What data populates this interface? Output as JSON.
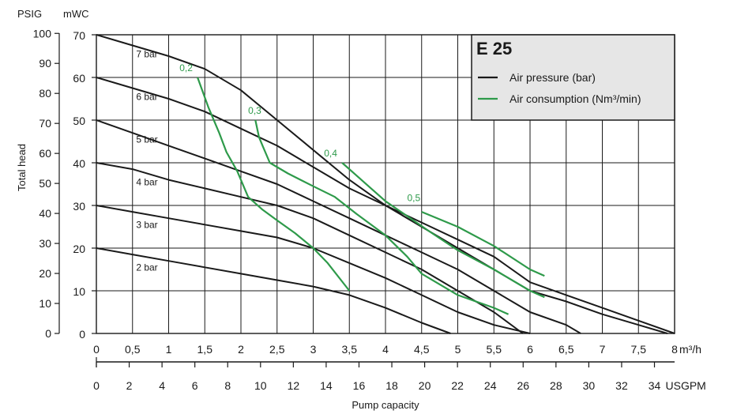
{
  "header": {
    "psig_label": "PSIG",
    "mwc_label": "mWC"
  },
  "colors": {
    "pressure": "#1a1a1a",
    "consumption": "#2e9a4a",
    "legend_bg": "#e6e6e6",
    "grid": "#1a1a1a"
  },
  "chart_data": {
    "type": "line",
    "title": "E 25",
    "ylabel": "Total head",
    "xlabel": "Pump capacity",
    "x_unit": "m³/h",
    "x2_unit": "USGPM",
    "xlim": [
      0,
      8
    ],
    "ylim": [
      0,
      70
    ],
    "grid": true,
    "legend_placement": "top-right",
    "x_ticks": [
      "0",
      "0,5",
      "1",
      "1,5",
      "2",
      "2,5",
      "3",
      "3,5",
      "4",
      "4,5",
      "5",
      "5,5",
      "6",
      "6,5",
      "7",
      "7,5",
      "8"
    ],
    "y_ticks_mwc": [
      "0",
      "10",
      "20",
      "30",
      "40",
      "50",
      "60",
      "70"
    ],
    "y_ticks_psig": [
      "0",
      "10",
      "20",
      "30",
      "40",
      "50",
      "60",
      "70",
      "80",
      "90",
      "100"
    ],
    "x2_ticks": [
      "0",
      "2",
      "4",
      "6",
      "8",
      "10",
      "12",
      "14",
      "16",
      "18",
      "20",
      "22",
      "24",
      "26",
      "28",
      "30",
      "32",
      "34"
    ],
    "legend": [
      {
        "label": "Air pressure (bar)",
        "color": "#1a1a1a"
      },
      {
        "label": "Air consumption (Nm³/min)",
        "color": "#2e9a4a"
      }
    ],
    "pressure_series": [
      {
        "name": "7 bar",
        "points": [
          [
            0,
            70
          ],
          [
            0.5,
            67.5
          ],
          [
            1,
            65
          ],
          [
            1.5,
            62
          ],
          [
            2,
            57
          ],
          [
            2.5,
            50
          ],
          [
            3,
            43
          ],
          [
            3.5,
            36
          ],
          [
            4,
            30
          ],
          [
            4.5,
            26
          ],
          [
            5,
            22
          ],
          [
            5.5,
            18
          ],
          [
            6,
            12
          ],
          [
            6.5,
            9
          ],
          [
            7,
            6
          ],
          [
            7.5,
            3
          ],
          [
            8,
            0
          ]
        ]
      },
      {
        "name": "6 bar",
        "points": [
          [
            0,
            60
          ],
          [
            0.5,
            57.5
          ],
          [
            1,
            55
          ],
          [
            1.5,
            52
          ],
          [
            2,
            48
          ],
          [
            2.5,
            44
          ],
          [
            3,
            39
          ],
          [
            3.5,
            34
          ],
          [
            4,
            30
          ],
          [
            4.5,
            25
          ],
          [
            5,
            20
          ],
          [
            5.5,
            15
          ],
          [
            6,
            10
          ],
          [
            6.5,
            7.5
          ],
          [
            7,
            4.5
          ],
          [
            7.5,
            2
          ],
          [
            7.9,
            0
          ]
        ]
      },
      {
        "name": "5 bar",
        "points": [
          [
            0,
            50
          ],
          [
            0.5,
            47
          ],
          [
            1,
            44
          ],
          [
            1.5,
            41
          ],
          [
            2,
            38
          ],
          [
            2.5,
            35
          ],
          [
            3,
            31
          ],
          [
            3.5,
            27
          ],
          [
            4,
            23
          ],
          [
            4.5,
            19
          ],
          [
            5,
            15
          ],
          [
            5.5,
            10
          ],
          [
            6,
            5
          ],
          [
            6.5,
            2
          ],
          [
            6.7,
            0
          ]
        ]
      },
      {
        "name": "4 bar",
        "points": [
          [
            0,
            40
          ],
          [
            0.5,
            38.5
          ],
          [
            1,
            36
          ],
          [
            1.5,
            34
          ],
          [
            2,
            32
          ],
          [
            2.5,
            30
          ],
          [
            3,
            27
          ],
          [
            3.5,
            23
          ],
          [
            4,
            19
          ],
          [
            4.5,
            15
          ],
          [
            5,
            10
          ],
          [
            5.5,
            5
          ],
          [
            5.9,
            0
          ]
        ]
      },
      {
        "name": "3 bar",
        "points": [
          [
            0,
            30
          ],
          [
            0.5,
            28.5
          ],
          [
            1,
            27
          ],
          [
            1.5,
            25.5
          ],
          [
            2,
            24
          ],
          [
            2.5,
            22.5
          ],
          [
            3,
            20
          ],
          [
            3.5,
            16.5
          ],
          [
            4,
            13
          ],
          [
            4.5,
            9
          ],
          [
            5,
            5
          ],
          [
            5.5,
            2
          ],
          [
            6,
            0
          ]
        ]
      },
      {
        "name": "2 bar",
        "points": [
          [
            0,
            20
          ],
          [
            0.5,
            18.5
          ],
          [
            1,
            17
          ],
          [
            1.5,
            15.5
          ],
          [
            2,
            14
          ],
          [
            2.5,
            12.5
          ],
          [
            3,
            11
          ],
          [
            3.5,
            9
          ],
          [
            4,
            6
          ],
          [
            4.5,
            2.5
          ],
          [
            4.9,
            0
          ]
        ]
      }
    ],
    "consumption_series": [
      {
        "name": "0,2",
        "points": [
          [
            1.4,
            60
          ],
          [
            1.55,
            53
          ],
          [
            1.7,
            47
          ],
          [
            1.8,
            42.5
          ],
          [
            1.95,
            38
          ],
          [
            2.1,
            32
          ],
          [
            2.3,
            29
          ],
          [
            2.5,
            26.5
          ],
          [
            2.75,
            23.5
          ],
          [
            3,
            20
          ],
          [
            3.2,
            16.5
          ],
          [
            3.5,
            10
          ]
        ]
      },
      {
        "name": "0,3",
        "points": [
          [
            2.2,
            50
          ],
          [
            2.25,
            46
          ],
          [
            2.3,
            44
          ],
          [
            2.4,
            40
          ],
          [
            2.65,
            37.5
          ],
          [
            3,
            34.5
          ],
          [
            3.3,
            32
          ],
          [
            3.6,
            28
          ],
          [
            4,
            23
          ],
          [
            4.3,
            18
          ],
          [
            4.5,
            14
          ],
          [
            5,
            9
          ],
          [
            5.5,
            6
          ],
          [
            5.7,
            4.5
          ]
        ]
      },
      {
        "name": "0,4",
        "points": [
          [
            3.4,
            40
          ],
          [
            3.6,
            37
          ],
          [
            3.8,
            34
          ],
          [
            4,
            31
          ],
          [
            4.3,
            27.5
          ],
          [
            4.6,
            24
          ],
          [
            5,
            19.5
          ],
          [
            5.5,
            15
          ],
          [
            6,
            10
          ],
          [
            6.2,
            8.5
          ]
        ]
      },
      {
        "name": "0,5",
        "points": [
          [
            4.5,
            28.5
          ],
          [
            5,
            25
          ],
          [
            5.5,
            20.5
          ],
          [
            6,
            15
          ],
          [
            6.2,
            13.5
          ]
        ]
      }
    ],
    "consumption_labels": [
      {
        "text": "0,2",
        "x": 1.15,
        "y": 61.5
      },
      {
        "text": "0,3",
        "x": 2.1,
        "y": 51.5
      },
      {
        "text": "0,4",
        "x": 3.15,
        "y": 41.5
      },
      {
        "text": "0,5",
        "x": 4.3,
        "y": 31
      }
    ]
  }
}
